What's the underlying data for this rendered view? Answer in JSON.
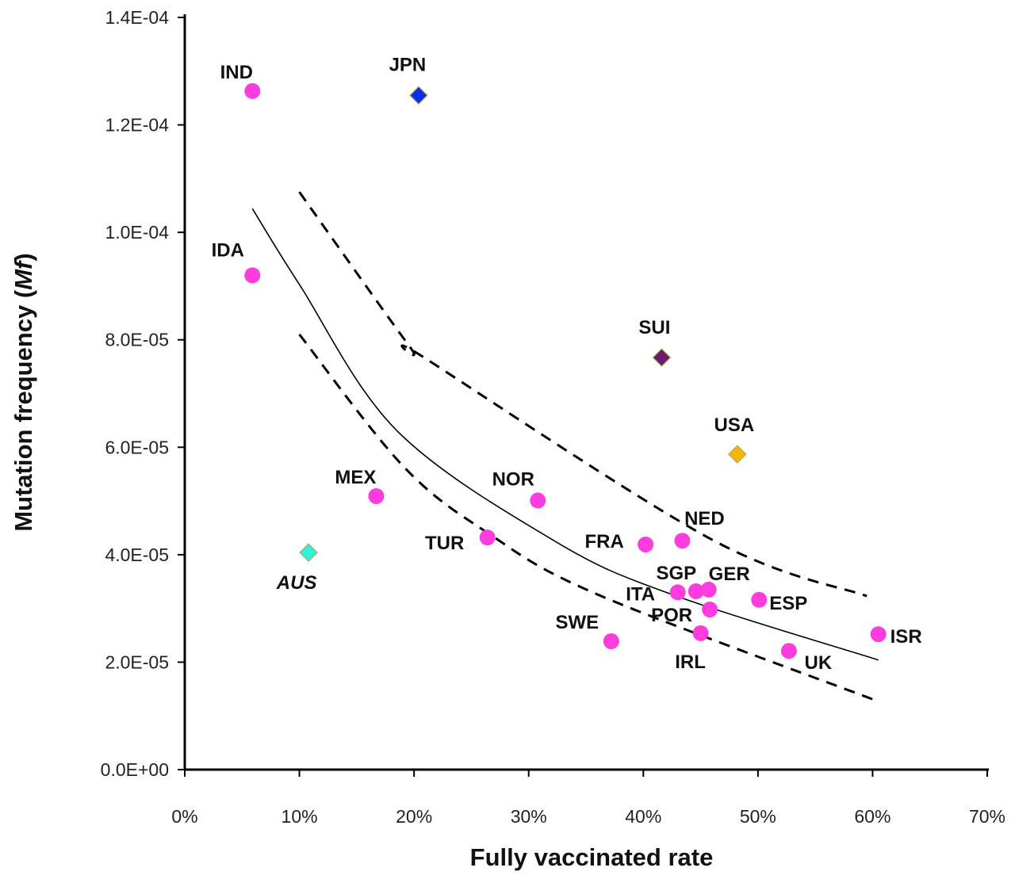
{
  "chart_data": {
    "type": "scatter",
    "title": "",
    "xlabel": "Fully vaccinated rate",
    "ylabel_main": "Mutation frequency (",
    "ylabel_italic": "Mf",
    "ylabel_close": ")",
    "xlim": [
      0,
      70
    ],
    "ylim": [
      0,
      0.00014
    ],
    "grid": false,
    "x_ticks": [
      0,
      10,
      20,
      30,
      40,
      50,
      60,
      70
    ],
    "x_tick_labels": [
      "0%",
      "10%",
      "20%",
      "30%",
      "40%",
      "50%",
      "60%",
      "70%"
    ],
    "y_ticks": [
      0,
      2e-05,
      4e-05,
      6e-05,
      8e-05,
      0.0001,
      0.00012,
      0.00014
    ],
    "y_tick_labels": [
      "0.0E+00",
      "2.0E-05",
      "4.0E-05",
      "6.0E-05",
      "8.0E-05",
      "1.0E-04",
      "1.2E-04",
      "1.4E-04"
    ],
    "colors": {
      "circle": "#ff3ddf",
      "JPN": "#0a2fe0",
      "SUI": "#6b1b6b",
      "USA": "#f4b400",
      "AUS": "#2ff0dc"
    },
    "points": [
      {
        "label": "IND",
        "x": 5.9,
        "y": 0.0001263,
        "marker": "circle"
      },
      {
        "label": "JPN",
        "x": 20.4,
        "y": 0.0001255,
        "marker": "diamond"
      },
      {
        "label": "IDA",
        "x": 5.9,
        "y": 9.2e-05,
        "marker": "circle"
      },
      {
        "label": "SUI",
        "x": 41.6,
        "y": 7.67e-05,
        "marker": "diamond"
      },
      {
        "label": "USA",
        "x": 48.2,
        "y": 5.87e-05,
        "marker": "diamond"
      },
      {
        "label": "MEX",
        "x": 16.7,
        "y": 5.09e-05,
        "marker": "circle"
      },
      {
        "label": "NOR",
        "x": 30.8,
        "y": 5.01e-05,
        "marker": "circle"
      },
      {
        "label": "AUS",
        "x": 10.8,
        "y": 4.04e-05,
        "marker": "diamond",
        "italic": true
      },
      {
        "label": "TUR",
        "x": 26.4,
        "y": 4.32e-05,
        "marker": "circle"
      },
      {
        "label": "FRA",
        "x": 40.2,
        "y": 4.19e-05,
        "marker": "circle"
      },
      {
        "label": "NED",
        "x": 43.4,
        "y": 4.26e-05,
        "marker": "circle"
      },
      {
        "label": "ITA",
        "x": 43.0,
        "y": 3.3e-05,
        "marker": "circle"
      },
      {
        "label": "SGP",
        "x": 44.6,
        "y": 3.32e-05,
        "marker": "circle"
      },
      {
        "label": "GER",
        "x": 45.7,
        "y": 3.35e-05,
        "marker": "circle"
      },
      {
        "label": "POR",
        "x": 45.8,
        "y": 2.98e-05,
        "marker": "circle"
      },
      {
        "label": "ESP",
        "x": 50.1,
        "y": 3.16e-05,
        "marker": "circle"
      },
      {
        "label": "IRL",
        "x": 45.0,
        "y": 2.54e-05,
        "marker": "circle"
      },
      {
        "label": "SWE",
        "x": 37.2,
        "y": 2.39e-05,
        "marker": "circle"
      },
      {
        "label": "UK",
        "x": 52.7,
        "y": 2.21e-05,
        "marker": "circle"
      },
      {
        "label": "ISR",
        "x": 60.5,
        "y": 2.52e-05,
        "marker": "circle"
      }
    ],
    "fit_curve": {
      "x": [
        5.9,
        10,
        18.5,
        32.3,
        42.5,
        60.5
      ],
      "y": [
        0.0001044,
        9.03e-05,
        6.31e-05,
        4.25e-05,
        3.26e-05,
        2.04e-05
      ]
    },
    "upper_band": {
      "x": [
        10,
        19.6,
        20.8,
        45.9,
        59.5
      ],
      "y": [
        0.0001075,
        7.88e-05,
        7.68e-05,
        4.29e-05,
        3.23e-05
      ]
    },
    "lower_band": {
      "x": [
        10,
        19.0,
        26.4,
        36.0,
        60.0
      ],
      "y": [
        8.1e-05,
        5.66e-05,
        4.41e-05,
        3.26e-05,
        1.31e-05
      ]
    }
  }
}
